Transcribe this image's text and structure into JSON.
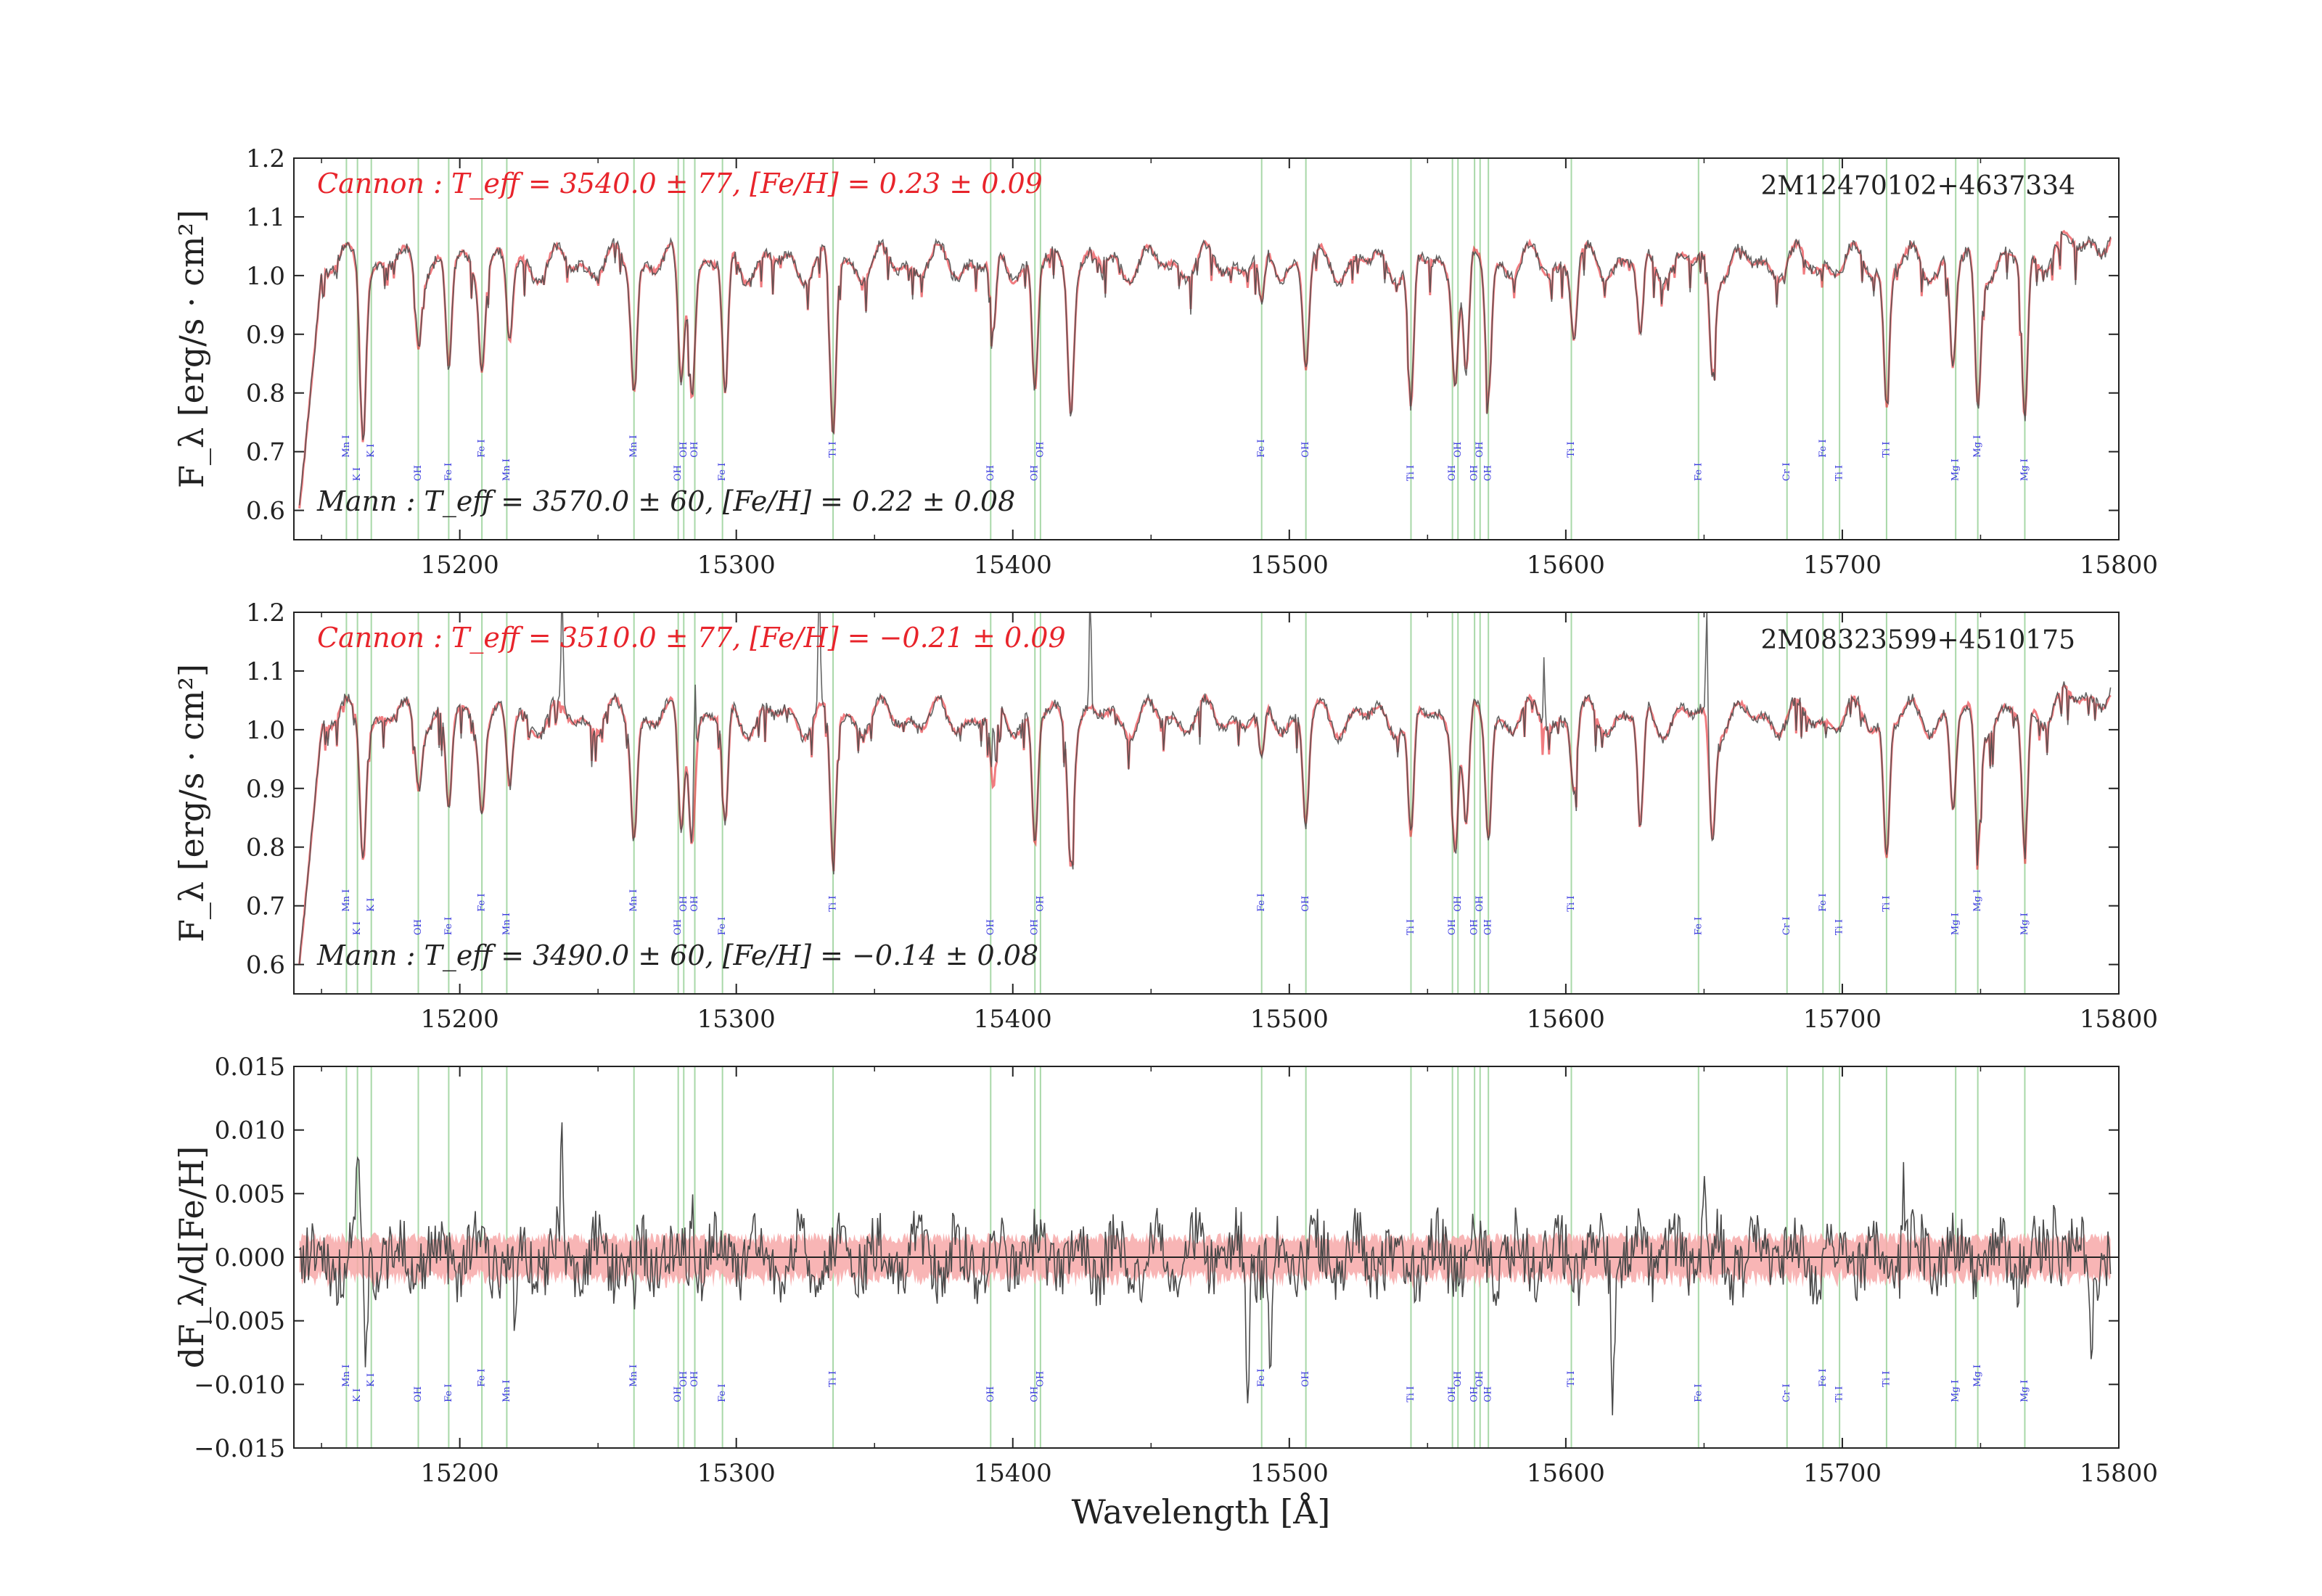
{
  "figure": {
    "xlabel": "Wavelength [Å]",
    "colors": {
      "data_line": "#4a4a4a",
      "model_line": "#e8242b",
      "model_band": "#f7a8a8",
      "line_marker": "#a8d8a8",
      "line_label": "#3a3ae0",
      "axes": "#222222"
    }
  },
  "chart_data": [
    {
      "type": "line",
      "panel": "top",
      "star_id": "2M12470102+4637334",
      "cannon_label": "Cannon : T_eff = 3540.0 ± 77, [Fe/H] = 0.23 ± 0.09",
      "mann_label": "Mann : T_eff = 3570.0 ± 60, [Fe/H] = 0.22 ± 0.08",
      "ylabel": "F_λ [erg/s · cm²]",
      "xlim": [
        15140,
        15800
      ],
      "ylim": [
        0.55,
        1.2
      ],
      "xticks": [
        "15200",
        "15300",
        "15400",
        "15500",
        "15600",
        "15700",
        "15800"
      ],
      "yticks": [
        "0.6",
        "0.7",
        "0.8",
        "0.9",
        "1.0",
        "1.1",
        "1.2"
      ],
      "ytick_values": [
        0.6,
        0.7,
        0.8,
        0.9,
        1.0,
        1.1,
        1.2
      ],
      "xtick_values": [
        15200,
        15300,
        15400,
        15500,
        15600,
        15700,
        15800
      ],
      "series": [],
      "spectrum_features": [
        {
          "x": 15165,
          "depth": 0.28
        },
        {
          "x": 15185,
          "depth": 0.12
        },
        {
          "x": 15196,
          "depth": 0.18
        },
        {
          "x": 15208,
          "depth": 0.15
        },
        {
          "x": 15218,
          "depth": 0.14
        },
        {
          "x": 15263,
          "depth": 0.2
        },
        {
          "x": 15280,
          "depth": 0.2
        },
        {
          "x": 15284,
          "depth": 0.2
        },
        {
          "x": 15296,
          "depth": 0.24
        },
        {
          "x": 15335,
          "depth": 0.3
        },
        {
          "x": 15393,
          "depth": 0.14
        },
        {
          "x": 15408,
          "depth": 0.22
        },
        {
          "x": 15421,
          "depth": 0.22
        },
        {
          "x": 15490,
          "depth": 0.1
        },
        {
          "x": 15506,
          "depth": 0.18
        },
        {
          "x": 15544,
          "depth": 0.26
        },
        {
          "x": 15560,
          "depth": 0.18
        },
        {
          "x": 15564,
          "depth": 0.2
        },
        {
          "x": 15572,
          "depth": 0.22
        },
        {
          "x": 15603,
          "depth": 0.12
        },
        {
          "x": 15627,
          "depth": 0.14
        },
        {
          "x": 15653,
          "depth": 0.18
        },
        {
          "x": 15716,
          "depth": 0.24
        },
        {
          "x": 15740,
          "depth": 0.18
        },
        {
          "x": 15749,
          "depth": 0.24
        },
        {
          "x": 15766,
          "depth": 0.28
        }
      ]
    },
    {
      "type": "line",
      "panel": "middle",
      "star_id": "2M08323599+4510175",
      "cannon_label": "Cannon : T_eff = 3510.0 ± 77, [Fe/H] = −0.21 ± 0.09",
      "mann_label": "Mann : T_eff = 3490.0 ± 60, [Fe/H] = −0.14 ± 0.08",
      "ylabel": "F_λ [erg/s · cm²]",
      "xlim": [
        15140,
        15800
      ],
      "ylim": [
        0.55,
        1.2
      ],
      "xticks": [
        "15200",
        "15300",
        "15400",
        "15500",
        "15600",
        "15700",
        "15800"
      ],
      "yticks": [
        "0.6",
        "0.7",
        "0.8",
        "0.9",
        "1.0",
        "1.1",
        "1.2"
      ],
      "ytick_values": [
        0.6,
        0.7,
        0.8,
        0.9,
        1.0,
        1.1,
        1.2
      ],
      "xtick_values": [
        15200,
        15300,
        15400,
        15500,
        15600,
        15700,
        15800
      ],
      "series": [],
      "spectrum_features": [
        {
          "x": 15165,
          "depth": 0.22
        },
        {
          "x": 15185,
          "depth": 0.1
        },
        {
          "x": 15196,
          "depth": 0.16
        },
        {
          "x": 15208,
          "depth": 0.13
        },
        {
          "x": 15218,
          "depth": 0.12
        },
        {
          "x": 15263,
          "depth": 0.19
        },
        {
          "x": 15280,
          "depth": 0.19
        },
        {
          "x": 15284,
          "depth": 0.19
        },
        {
          "x": 15296,
          "depth": 0.2
        },
        {
          "x": 15335,
          "depth": 0.25
        },
        {
          "x": 15393,
          "depth": 0.15
        },
        {
          "x": 15408,
          "depth": 0.22
        },
        {
          "x": 15421,
          "depth": 0.22
        },
        {
          "x": 15490,
          "depth": 0.1
        },
        {
          "x": 15506,
          "depth": 0.18
        },
        {
          "x": 15544,
          "depth": 0.22
        },
        {
          "x": 15560,
          "depth": 0.2
        },
        {
          "x": 15564,
          "depth": 0.2
        },
        {
          "x": 15572,
          "depth": 0.2
        },
        {
          "x": 15603,
          "depth": 0.12
        },
        {
          "x": 15627,
          "depth": 0.2
        },
        {
          "x": 15653,
          "depth": 0.2
        },
        {
          "x": 15716,
          "depth": 0.24
        },
        {
          "x": 15740,
          "depth": 0.16
        },
        {
          "x": 15749,
          "depth": 0.22
        },
        {
          "x": 15766,
          "depth": 0.24
        }
      ],
      "spikes": [
        {
          "x": 15237,
          "height": 0.22
        },
        {
          "x": 15285,
          "height": 0.2
        },
        {
          "x": 15330,
          "height": 0.25
        },
        {
          "x": 15393,
          "height": 0.12
        },
        {
          "x": 15428,
          "height": 0.2
        },
        {
          "x": 15592,
          "height": 0.12
        },
        {
          "x": 15651,
          "height": 0.2
        }
      ]
    },
    {
      "type": "line",
      "panel": "bottom",
      "ylabel": "dF_λ/d[Fe/H]",
      "xlim": [
        15140,
        15800
      ],
      "ylim": [
        -0.015,
        0.015
      ],
      "xticks": [
        "15200",
        "15300",
        "15400",
        "15500",
        "15600",
        "15700",
        "15800"
      ],
      "yticks": [
        "−0.015",
        "−0.010",
        "−0.005",
        "0.000",
        "0.005",
        "0.010",
        "0.015"
      ],
      "ytick_values": [
        -0.015,
        -0.01,
        -0.005,
        0.0,
        0.005,
        0.01,
        0.015
      ],
      "xtick_values": [
        15200,
        15300,
        15400,
        15500,
        15600,
        15700,
        15800
      ],
      "series": [],
      "band_halfwidth": 0.0015,
      "peaks": [
        {
          "x": 15163,
          "value": 0.0072
        },
        {
          "x": 15166,
          "value": -0.0075
        },
        {
          "x": 15237,
          "value": 0.0075
        },
        {
          "x": 15220,
          "value": -0.007
        },
        {
          "x": 15263,
          "value": -0.006
        },
        {
          "x": 15284,
          "value": 0.0055
        },
        {
          "x": 15485,
          "value": -0.011
        },
        {
          "x": 15493,
          "value": -0.009
        },
        {
          "x": 15617,
          "value": -0.0095
        },
        {
          "x": 15650,
          "value": 0.006
        },
        {
          "x": 15722,
          "value": 0.0062
        },
        {
          "x": 15777,
          "value": 0.0055
        },
        {
          "x": 15790,
          "value": -0.0055
        }
      ]
    }
  ],
  "line_markers": [
    {
      "x": 15159,
      "label": "Mn I",
      "row": 0
    },
    {
      "x": 15163,
      "label": "K I",
      "row": 1
    },
    {
      "x": 15168,
      "label": "K I",
      "row": 0
    },
    {
      "x": 15185,
      "label": "OH",
      "row": 1
    },
    {
      "x": 15196,
      "label": "Fe I",
      "row": 1
    },
    {
      "x": 15208,
      "label": "Fe I",
      "row": 0
    },
    {
      "x": 15217,
      "label": "Mn I",
      "row": 1
    },
    {
      "x": 15263,
      "label": "Mn I",
      "row": 0
    },
    {
      "x": 15279,
      "label": "OH",
      "row": 1
    },
    {
      "x": 15281,
      "label": "OH",
      "row": 0
    },
    {
      "x": 15285,
      "label": "OH",
      "row": 0
    },
    {
      "x": 15295,
      "label": "Fe I",
      "row": 1
    },
    {
      "x": 15335,
      "label": "Ti I",
      "row": 0
    },
    {
      "x": 15392,
      "label": "OH",
      "row": 1
    },
    {
      "x": 15408,
      "label": "OH",
      "row": 1
    },
    {
      "x": 15410,
      "label": "OH",
      "row": 0
    },
    {
      "x": 15490,
      "label": "Fe I",
      "row": 0
    },
    {
      "x": 15506,
      "label": "OH",
      "row": 0
    },
    {
      "x": 15544,
      "label": "Ti I",
      "row": 1
    },
    {
      "x": 15559,
      "label": "OH",
      "row": 1
    },
    {
      "x": 15561,
      "label": "OH",
      "row": 0
    },
    {
      "x": 15567,
      "label": "OH",
      "row": 1
    },
    {
      "x": 15569,
      "label": "OH",
      "row": 0
    },
    {
      "x": 15572,
      "label": "OH",
      "row": 1
    },
    {
      "x": 15602,
      "label": "Ti I",
      "row": 0
    },
    {
      "x": 15648,
      "label": "Fe I",
      "row": 1
    },
    {
      "x": 15680,
      "label": "Cr I",
      "row": 1
    },
    {
      "x": 15693,
      "label": "Fe I",
      "row": 0
    },
    {
      "x": 15699,
      "label": "Ti I",
      "row": 1
    },
    {
      "x": 15716,
      "label": "Ti I",
      "row": 0
    },
    {
      "x": 15741,
      "label": "Mg I",
      "row": 1
    },
    {
      "x": 15749,
      "label": "Mg I",
      "row": 0
    },
    {
      "x": 15766,
      "label": "Mg I",
      "row": 1
    }
  ]
}
